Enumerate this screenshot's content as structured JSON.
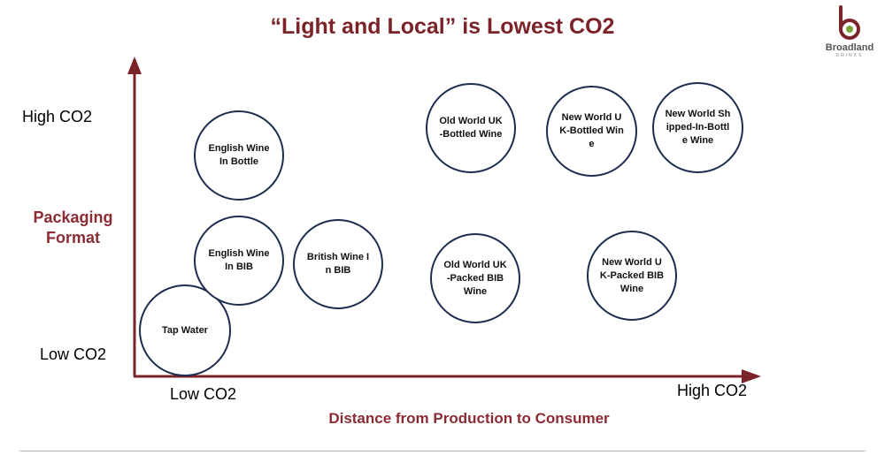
{
  "title": "“Light and Local” is Lowest CO2",
  "logo": {
    "name": "Broadland",
    "sub": "DRINKS"
  },
  "axes": {
    "y_high": "High CO2",
    "y_low": "Low CO2",
    "y_title": "Packaging Format",
    "x_low": "Low CO2",
    "x_high": "High CO2",
    "x_title": "Distance from Production to Consumer"
  },
  "bubbles": [
    {
      "label": "Tap Water"
    },
    {
      "label": "English Wine In BIB"
    },
    {
      "label": "English Wine In Bottle"
    },
    {
      "label": "British Wine In BIB"
    },
    {
      "label": "Old World UK-Bottled Wine"
    },
    {
      "label": "Old World UK-Packed BIB Wine"
    },
    {
      "label": "New World UK-Bottled Wine"
    },
    {
      "label": "New World Shipped-In-Bottle Wine"
    },
    {
      "label": "New World UK-Packed BIB Wine"
    }
  ],
  "colors": {
    "title": "#7b2328",
    "axis": "#7b2328",
    "circle_border": "#1c2d4f",
    "axis_title": "#8b2c34"
  }
}
